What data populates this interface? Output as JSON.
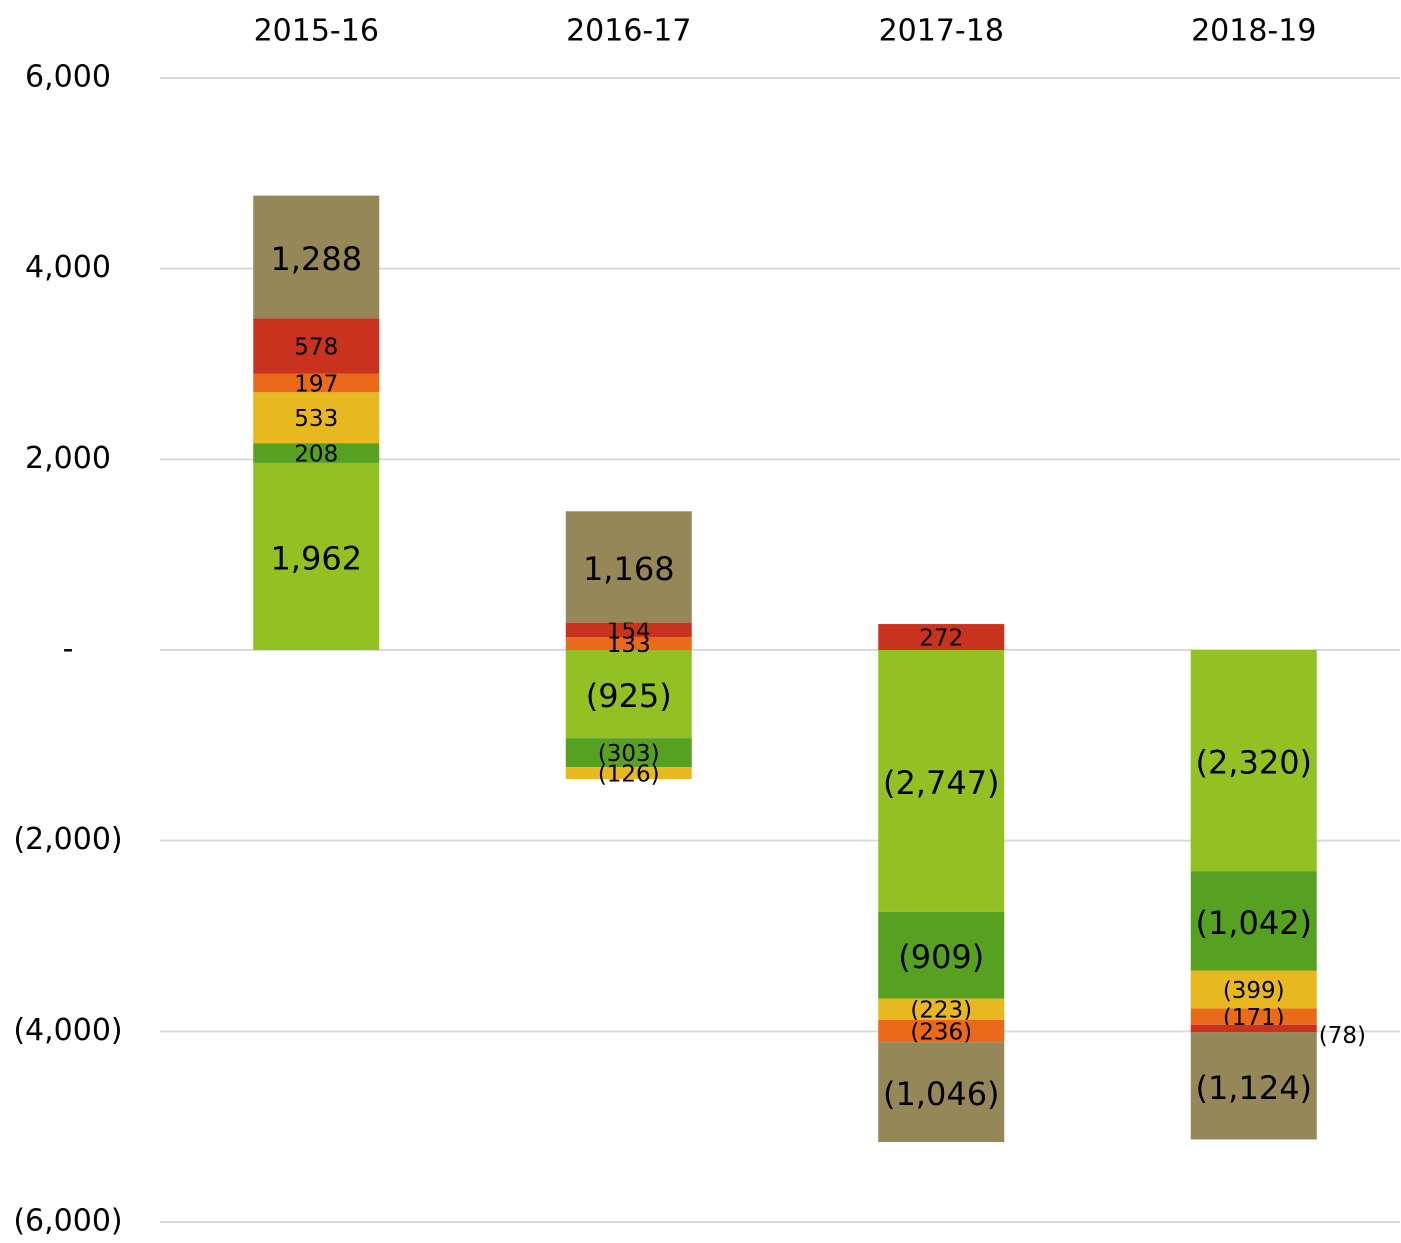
{
  "chart_data": {
    "type": "stacked-bar",
    "categories": [
      "2015-16",
      "2016-17",
      "2017-18",
      "2018-19"
    ],
    "series": [
      {
        "color": "#93c022",
        "values": [
          1962,
          -925,
          -2747,
          -2320
        ],
        "value_labels": [
          "1,962",
          "(925)",
          "(2,747)",
          "(2,320)"
        ]
      },
      {
        "color": "#56a022",
        "values": [
          208,
          -303,
          -909,
          -1042
        ],
        "value_labels": [
          "208",
          "(303)",
          "(909)",
          "(1,042)"
        ]
      },
      {
        "color": "#e8b820",
        "values": [
          533,
          -126,
          -223,
          -399
        ],
        "value_labels": [
          "533",
          "(126)",
          "(223)",
          "(399)"
        ]
      },
      {
        "color": "#ea6a1a",
        "values": [
          197,
          133,
          -236,
          -171
        ],
        "value_labels": [
          "197",
          "133",
          "(236)",
          "(171)"
        ]
      },
      {
        "color": "#c8321e",
        "values": [
          578,
          154,
          272,
          -78
        ],
        "value_labels": [
          "578",
          "154",
          "272",
          "(78)"
        ]
      },
      {
        "color": "#958757",
        "values": [
          1288,
          1168,
          -1046,
          -1124
        ],
        "value_labels": [
          "1,288",
          "1,168",
          "(1,046)",
          "(1,124)"
        ]
      }
    ],
    "ylim": [
      -6000,
      6000
    ],
    "yticks": [
      {
        "value": 6000,
        "label": "6,000"
      },
      {
        "value": 4000,
        "label": "4,000"
      },
      {
        "value": 2000,
        "label": "2,000"
      },
      {
        "value": 0,
        "label": "-"
      },
      {
        "value": -2000,
        "label": "(2,000)"
      },
      {
        "value": -4000,
        "label": "(4,000)"
      },
      {
        "value": -6000,
        "label": "(6,000)"
      }
    ],
    "grid": true
  }
}
